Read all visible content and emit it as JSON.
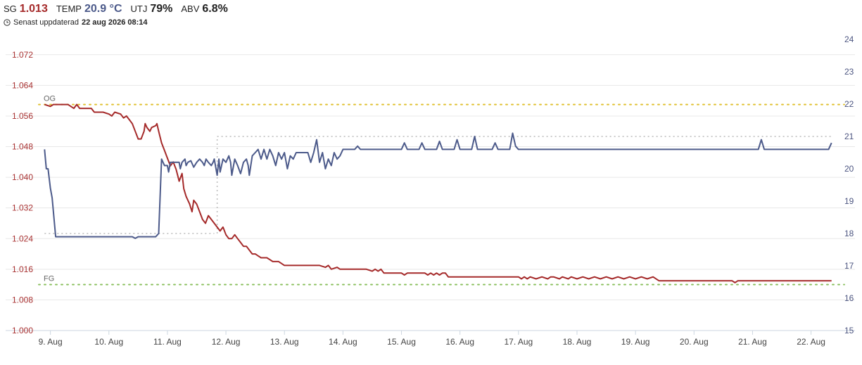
{
  "header": {
    "sg": {
      "label": "SG",
      "value": "1.013",
      "color": "#a52a2a"
    },
    "temp": {
      "label": "TEMP",
      "value": "20.9 °C",
      "color": "#4c5a8a"
    },
    "utj": {
      "label": "UTJ",
      "value": "79%",
      "color": "#222222"
    },
    "abv": {
      "label": "ABV",
      "value": "6.8%",
      "color": "#222222"
    },
    "updated_prefix": "Senast uppdaterad",
    "updated_time": "22 aug 2026 08:14",
    "clock_icon": "clock-icon"
  },
  "chart_data": {
    "type": "line",
    "x_axis": {
      "unit": "day",
      "range": [
        8.8,
        22.45
      ],
      "ticks": [
        9,
        10,
        11,
        12,
        13,
        14,
        15,
        16,
        17,
        18,
        19,
        20,
        21,
        22
      ],
      "tick_labels": [
        "9. Aug",
        "10. Aug",
        "11. Aug",
        "12. Aug",
        "13. Aug",
        "14. Aug",
        "15. Aug",
        "16. Aug",
        "17. Aug",
        "18. Aug",
        "19. Aug",
        "20. Aug",
        "21. Aug",
        "22. Aug"
      ]
    },
    "y_left": {
      "range": [
        1.0,
        1.076
      ],
      "ticks": [
        1.0,
        1.008,
        1.016,
        1.024,
        1.032,
        1.04,
        1.048,
        1.056,
        1.064,
        1.072
      ],
      "tick_labels": [
        "1.000",
        "1.008",
        "1.016",
        "1.024",
        "1.032",
        "1.040",
        "1.048",
        "1.056",
        "1.064",
        "1.072"
      ],
      "color": "#a83232"
    },
    "y_right": {
      "range": [
        15.0,
        24.0
      ],
      "ticks": [
        15,
        16,
        17,
        18,
        19,
        20,
        21,
        22,
        23,
        24
      ],
      "tick_labels": [
        "15",
        "16",
        "17",
        "18",
        "19",
        "20",
        "21",
        "22",
        "23",
        "24"
      ],
      "color": "#4c5580"
    },
    "grid": true,
    "reference_lines": [
      {
        "label": "OG",
        "axis": "left",
        "value": 1.059,
        "color": "#e0c030"
      },
      {
        "label": "FG",
        "axis": "left",
        "value": 1.012,
        "color": "#8cc060"
      }
    ],
    "helper_lines": [
      {
        "axis": "right",
        "value": 18.0,
        "x_range": [
          8.9,
          11.8
        ],
        "color": "#bbbbbb"
      },
      {
        "axis": "right",
        "value": 21.0,
        "x_range": [
          11.85,
          22.35
        ],
        "color": "#bbbbbb"
      },
      {
        "axis": "right",
        "value_range": [
          18.0,
          21.0
        ],
        "x": 11.85,
        "color": "#bbbbbb"
      }
    ],
    "series": [
      {
        "axis": "left",
        "color": "#a52a2a",
        "points": [
          [
            8.9,
            1.059
          ],
          [
            9.0,
            1.0585
          ],
          [
            9.05,
            1.059
          ],
          [
            9.1,
            1.059
          ],
          [
            9.2,
            1.059
          ],
          [
            9.3,
            1.059
          ],
          [
            9.35,
            1.0585
          ],
          [
            9.4,
            1.058
          ],
          [
            9.45,
            1.059
          ],
          [
            9.5,
            1.058
          ],
          [
            9.7,
            1.058
          ],
          [
            9.75,
            1.057
          ],
          [
            9.9,
            1.057
          ],
          [
            10.0,
            1.0565
          ],
          [
            10.05,
            1.056
          ],
          [
            10.1,
            1.057
          ],
          [
            10.2,
            1.0565
          ],
          [
            10.25,
            1.0555
          ],
          [
            10.3,
            1.056
          ],
          [
            10.35,
            1.055
          ],
          [
            10.4,
            1.054
          ],
          [
            10.45,
            1.052
          ],
          [
            10.5,
            1.05
          ],
          [
            10.55,
            1.05
          ],
          [
            10.6,
            1.052
          ],
          [
            10.62,
            1.054
          ],
          [
            10.65,
            1.053
          ],
          [
            10.7,
            1.052
          ],
          [
            10.73,
            1.053
          ],
          [
            10.8,
            1.0535
          ],
          [
            10.82,
            1.054
          ],
          [
            10.85,
            1.052
          ],
          [
            10.9,
            1.049
          ],
          [
            10.95,
            1.047
          ],
          [
            11.0,
            1.045
          ],
          [
            11.05,
            1.043
          ],
          [
            11.1,
            1.044
          ],
          [
            11.15,
            1.042
          ],
          [
            11.2,
            1.039
          ],
          [
            11.25,
            1.041
          ],
          [
            11.28,
            1.037
          ],
          [
            11.32,
            1.035
          ],
          [
            11.38,
            1.033
          ],
          [
            11.42,
            1.031
          ],
          [
            11.45,
            1.034
          ],
          [
            11.5,
            1.033
          ],
          [
            11.55,
            1.031
          ],
          [
            11.6,
            1.029
          ],
          [
            11.65,
            1.028
          ],
          [
            11.7,
            1.03
          ],
          [
            11.75,
            1.029
          ],
          [
            11.8,
            1.028
          ],
          [
            11.85,
            1.027
          ],
          [
            11.9,
            1.026
          ],
          [
            11.95,
            1.027
          ],
          [
            12.0,
            1.025
          ],
          [
            12.05,
            1.024
          ],
          [
            12.1,
            1.024
          ],
          [
            12.15,
            1.025
          ],
          [
            12.2,
            1.024
          ],
          [
            12.25,
            1.023
          ],
          [
            12.3,
            1.022
          ],
          [
            12.35,
            1.022
          ],
          [
            12.4,
            1.021
          ],
          [
            12.45,
            1.02
          ],
          [
            12.5,
            1.02
          ],
          [
            12.55,
            1.0195
          ],
          [
            12.6,
            1.019
          ],
          [
            12.7,
            1.019
          ],
          [
            12.8,
            1.018
          ],
          [
            12.9,
            1.018
          ],
          [
            12.95,
            1.0175
          ],
          [
            13.0,
            1.017
          ],
          [
            13.2,
            1.017
          ],
          [
            13.4,
            1.017
          ],
          [
            13.6,
            1.017
          ],
          [
            13.7,
            1.0165
          ],
          [
            13.75,
            1.017
          ],
          [
            13.8,
            1.016
          ],
          [
            13.9,
            1.0165
          ],
          [
            13.95,
            1.016
          ],
          [
            14.2,
            1.016
          ],
          [
            14.4,
            1.016
          ],
          [
            14.5,
            1.0155
          ],
          [
            14.55,
            1.016
          ],
          [
            14.6,
            1.0155
          ],
          [
            14.65,
            1.016
          ],
          [
            14.7,
            1.015
          ],
          [
            15.0,
            1.015
          ],
          [
            15.05,
            1.0145
          ],
          [
            15.1,
            1.015
          ],
          [
            15.4,
            1.015
          ],
          [
            15.45,
            1.0145
          ],
          [
            15.5,
            1.015
          ],
          [
            15.55,
            1.0145
          ],
          [
            15.6,
            1.015
          ],
          [
            15.65,
            1.0145
          ],
          [
            15.7,
            1.015
          ],
          [
            15.75,
            1.015
          ],
          [
            15.8,
            1.014
          ],
          [
            16.3,
            1.014
          ],
          [
            16.8,
            1.014
          ],
          [
            17.0,
            1.014
          ],
          [
            17.05,
            1.0135
          ],
          [
            17.1,
            1.014
          ],
          [
            17.15,
            1.0135
          ],
          [
            17.2,
            1.014
          ],
          [
            17.3,
            1.0135
          ],
          [
            17.4,
            1.014
          ],
          [
            17.5,
            1.0135
          ],
          [
            17.55,
            1.014
          ],
          [
            17.6,
            1.014
          ],
          [
            17.7,
            1.0135
          ],
          [
            17.75,
            1.014
          ],
          [
            17.85,
            1.0135
          ],
          [
            17.9,
            1.014
          ],
          [
            18.0,
            1.0135
          ],
          [
            18.1,
            1.014
          ],
          [
            18.2,
            1.0135
          ],
          [
            18.3,
            1.014
          ],
          [
            18.4,
            1.0135
          ],
          [
            18.5,
            1.014
          ],
          [
            18.6,
            1.0135
          ],
          [
            18.7,
            1.014
          ],
          [
            18.8,
            1.0135
          ],
          [
            18.9,
            1.014
          ],
          [
            19.0,
            1.0135
          ],
          [
            19.1,
            1.014
          ],
          [
            19.2,
            1.0135
          ],
          [
            19.3,
            1.014
          ],
          [
            19.4,
            1.013
          ],
          [
            19.6,
            1.013
          ],
          [
            20.0,
            1.013
          ],
          [
            20.4,
            1.013
          ],
          [
            20.65,
            1.013
          ],
          [
            20.7,
            1.0125
          ],
          [
            20.75,
            1.013
          ],
          [
            21.0,
            1.013
          ],
          [
            21.5,
            1.013
          ],
          [
            22.0,
            1.013
          ],
          [
            22.35,
            1.013
          ]
        ]
      },
      {
        "axis": "right",
        "color": "#4c5a8a",
        "points": [
          [
            8.9,
            20.6
          ],
          [
            8.93,
            20.0
          ],
          [
            8.96,
            20.0
          ],
          [
            9.0,
            19.4
          ],
          [
            9.03,
            19.1
          ],
          [
            9.06,
            18.5
          ],
          [
            9.09,
            17.9
          ],
          [
            9.2,
            17.9
          ],
          [
            9.5,
            17.9
          ],
          [
            10.0,
            17.9
          ],
          [
            10.4,
            17.9
          ],
          [
            10.45,
            17.85
          ],
          [
            10.5,
            17.9
          ],
          [
            10.8,
            17.9
          ],
          [
            10.85,
            18.0
          ],
          [
            10.9,
            20.3
          ],
          [
            10.95,
            20.1
          ],
          [
            11.0,
            20.1
          ],
          [
            11.02,
            19.9
          ],
          [
            11.05,
            20.2
          ],
          [
            11.1,
            20.2
          ],
          [
            11.2,
            20.2
          ],
          [
            11.22,
            20.0
          ],
          [
            11.25,
            20.2
          ],
          [
            11.3,
            20.3
          ],
          [
            11.32,
            20.1
          ],
          [
            11.35,
            20.2
          ],
          [
            11.4,
            20.25
          ],
          [
            11.45,
            20.05
          ],
          [
            11.5,
            20.2
          ],
          [
            11.55,
            20.3
          ],
          [
            11.6,
            20.2
          ],
          [
            11.63,
            20.1
          ],
          [
            11.66,
            20.3
          ],
          [
            11.7,
            20.2
          ],
          [
            11.75,
            20.1
          ],
          [
            11.78,
            20.2
          ],
          [
            11.8,
            20.3
          ],
          [
            11.85,
            19.8
          ],
          [
            11.88,
            20.3
          ],
          [
            11.9,
            19.9
          ],
          [
            11.95,
            20.3
          ],
          [
            12.0,
            20.2
          ],
          [
            12.05,
            20.4
          ],
          [
            12.08,
            20.2
          ],
          [
            12.1,
            19.8
          ],
          [
            12.15,
            20.3
          ],
          [
            12.2,
            20.1
          ],
          [
            12.25,
            19.85
          ],
          [
            12.3,
            20.2
          ],
          [
            12.35,
            20.3
          ],
          [
            12.38,
            20.1
          ],
          [
            12.4,
            19.8
          ],
          [
            12.45,
            20.4
          ],
          [
            12.5,
            20.5
          ],
          [
            12.55,
            20.6
          ],
          [
            12.6,
            20.3
          ],
          [
            12.65,
            20.6
          ],
          [
            12.7,
            20.3
          ],
          [
            12.75,
            20.6
          ],
          [
            12.8,
            20.4
          ],
          [
            12.85,
            20.1
          ],
          [
            12.9,
            20.5
          ],
          [
            12.95,
            20.3
          ],
          [
            13.0,
            20.5
          ],
          [
            13.05,
            20.0
          ],
          [
            13.1,
            20.4
          ],
          [
            13.15,
            20.3
          ],
          [
            13.2,
            20.5
          ],
          [
            13.3,
            20.5
          ],
          [
            13.4,
            20.5
          ],
          [
            13.45,
            20.2
          ],
          [
            13.5,
            20.5
          ],
          [
            13.55,
            20.9
          ],
          [
            13.6,
            20.2
          ],
          [
            13.65,
            20.5
          ],
          [
            13.7,
            20.0
          ],
          [
            13.75,
            20.3
          ],
          [
            13.8,
            20.1
          ],
          [
            13.85,
            20.5
          ],
          [
            13.9,
            20.3
          ],
          [
            13.95,
            20.4
          ],
          [
            14.0,
            20.6
          ],
          [
            14.05,
            20.6
          ],
          [
            14.1,
            20.6
          ],
          [
            14.2,
            20.6
          ],
          [
            14.25,
            20.7
          ],
          [
            14.3,
            20.6
          ],
          [
            14.5,
            20.6
          ],
          [
            14.8,
            20.6
          ],
          [
            15.0,
            20.6
          ],
          [
            15.05,
            20.8
          ],
          [
            15.1,
            20.6
          ],
          [
            15.3,
            20.6
          ],
          [
            15.35,
            20.8
          ],
          [
            15.4,
            20.6
          ],
          [
            15.6,
            20.6
          ],
          [
            15.65,
            20.85
          ],
          [
            15.7,
            20.6
          ],
          [
            15.9,
            20.6
          ],
          [
            15.95,
            20.9
          ],
          [
            16.0,
            20.6
          ],
          [
            16.2,
            20.6
          ],
          [
            16.25,
            21.0
          ],
          [
            16.3,
            20.6
          ],
          [
            16.55,
            20.6
          ],
          [
            16.6,
            20.8
          ],
          [
            16.65,
            20.6
          ],
          [
            16.85,
            20.6
          ],
          [
            16.9,
            21.1
          ],
          [
            16.95,
            20.7
          ],
          [
            17.0,
            20.6
          ],
          [
            17.5,
            20.6
          ],
          [
            18.0,
            20.6
          ],
          [
            18.5,
            20.6
          ],
          [
            19.0,
            20.6
          ],
          [
            19.5,
            20.6
          ],
          [
            20.0,
            20.6
          ],
          [
            20.5,
            20.6
          ],
          [
            21.0,
            20.6
          ],
          [
            21.1,
            20.6
          ],
          [
            21.15,
            20.9
          ],
          [
            21.2,
            20.6
          ],
          [
            21.5,
            20.6
          ],
          [
            22.0,
            20.6
          ],
          [
            22.3,
            20.6
          ],
          [
            22.35,
            20.8
          ]
        ]
      }
    ]
  }
}
